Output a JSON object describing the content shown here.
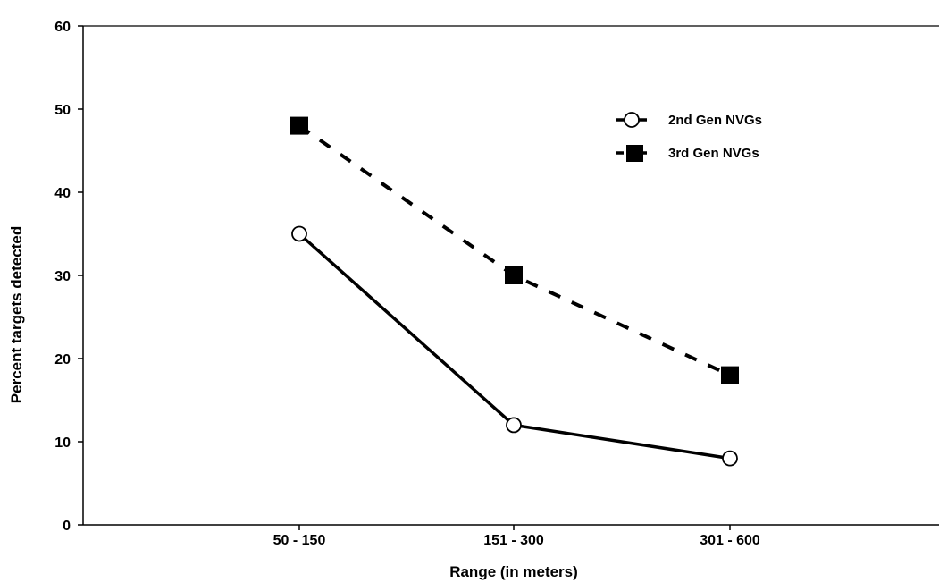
{
  "chart_data": {
    "type": "line",
    "title": "",
    "xlabel": "Range (in meters)",
    "ylabel": "Percent targets detected",
    "categories": [
      "50 - 150",
      "151 - 300",
      "301 - 600"
    ],
    "ylim": [
      0,
      60
    ],
    "yticks": [
      0,
      10,
      20,
      30,
      40,
      50,
      60
    ],
    "grid": false,
    "legend_position": "top-right",
    "series": [
      {
        "name": "2nd Gen NVGs",
        "values": [
          35,
          12,
          8
        ],
        "line_style": "solid",
        "marker": "open-circle",
        "color": "#000000"
      },
      {
        "name": "3rd Gen NVGs",
        "values": [
          48,
          30,
          18
        ],
        "line_style": "dashed",
        "marker": "filled-square",
        "color": "#000000"
      }
    ]
  }
}
